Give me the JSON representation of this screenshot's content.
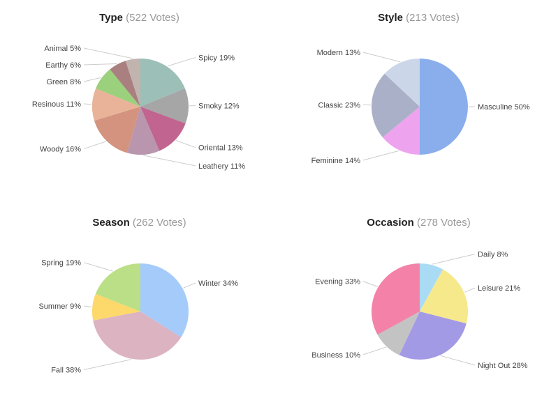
{
  "chart_data": [
    {
      "type": "pie",
      "title": "Type",
      "subtitle": "(522 Votes)",
      "slices": [
        {
          "label": "Spicy",
          "value": 19,
          "pct_label": "19%",
          "color": "#9cbfb8"
        },
        {
          "label": "Smoky",
          "value": 12,
          "pct_label": "12%",
          "color": "#a6a6a6"
        },
        {
          "label": "Oriental",
          "value": 13,
          "pct_label": "13%",
          "color": "#c1648f"
        },
        {
          "label": "Leathery",
          "value": 11,
          "pct_label": "11%",
          "color": "#b996ad"
        },
        {
          "label": "Woody",
          "value": 16,
          "pct_label": "16%",
          "color": "#d4937e"
        },
        {
          "label": "Resinous",
          "value": 11,
          "pct_label": "11%",
          "color": "#e8b398"
        },
        {
          "label": "Green",
          "value": 8,
          "pct_label": "8%",
          "color": "#9bd07c"
        },
        {
          "label": "Earthy",
          "value": 6,
          "pct_label": "6%",
          "color": "#aa7f80"
        },
        {
          "label": "Animal",
          "value": 5,
          "pct_label": "5%",
          "color": "#c1b3ae"
        }
      ]
    },
    {
      "type": "pie",
      "title": "Style",
      "subtitle": "(213 Votes)",
      "slices": [
        {
          "label": "Masculine",
          "value": 50,
          "pct_label": "50%",
          "color": "#8aaeec"
        },
        {
          "label": "Feminine",
          "value": 14,
          "pct_label": "14%",
          "color": "#eea3ef"
        },
        {
          "label": "Classic",
          "value": 23,
          "pct_label": "23%",
          "color": "#aab0c8"
        },
        {
          "label": "Modern",
          "value": 13,
          "pct_label": "13%",
          "color": "#ccd6e9"
        }
      ]
    },
    {
      "type": "pie",
      "title": "Season",
      "subtitle": "(262 Votes)",
      "slices": [
        {
          "label": "Winter",
          "value": 34,
          "pct_label": "34%",
          "color": "#a5cbfb"
        },
        {
          "label": "Fall",
          "value": 38,
          "pct_label": "38%",
          "color": "#dbb3c1"
        },
        {
          "label": "Summer",
          "value": 9,
          "pct_label": "9%",
          "color": "#fdd86b"
        },
        {
          "label": "Spring",
          "value": 19,
          "pct_label": "19%",
          "color": "#badf86"
        }
      ]
    },
    {
      "type": "pie",
      "title": "Occasion",
      "subtitle": "(278 Votes)",
      "slices": [
        {
          "label": "Daily",
          "value": 8,
          "pct_label": "8%",
          "color": "#aadbf4"
        },
        {
          "label": "Leisure",
          "value": 21,
          "pct_label": "21%",
          "color": "#f6e98b"
        },
        {
          "label": "Night Out",
          "value": 28,
          "pct_label": "28%",
          "color": "#a39ae6"
        },
        {
          "label": "Business",
          "value": 10,
          "pct_label": "10%",
          "color": "#c3c3c3"
        },
        {
          "label": "Evening",
          "value": 33,
          "pct_label": "33%",
          "color": "#f381a8"
        }
      ]
    }
  ]
}
